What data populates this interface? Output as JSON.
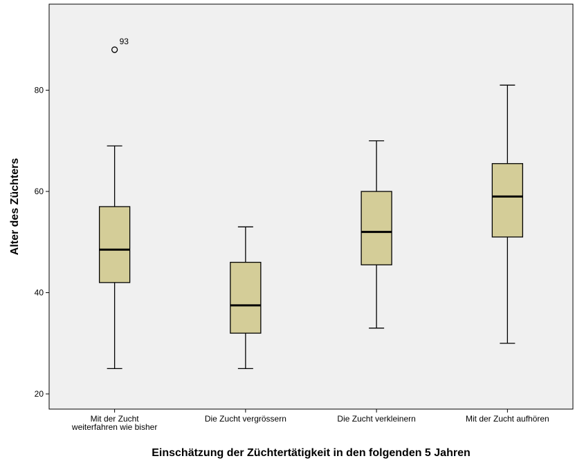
{
  "chart_data": {
    "type": "boxplot",
    "title": "",
    "xlabel": "Einschätzung der Züchtertätigkeit in den folgenden 5 Jahren",
    "ylabel": "Alter des Züchters",
    "ylim": [
      17,
      97
    ],
    "yticks": [
      20,
      40,
      60,
      80
    ],
    "grid": false,
    "colors": {
      "plot_background": "#f0f0f0",
      "box_fill": "#d4cd98",
      "stroke": "#000000"
    },
    "categories": [
      {
        "lines": [
          "Mit der Zucht",
          "weiterfahren wie bisher"
        ]
      },
      {
        "lines": [
          "Die Zucht vergrössern"
        ]
      },
      {
        "lines": [
          "Die Zucht verkleinern"
        ]
      },
      {
        "lines": [
          "Mit der Zucht aufhören"
        ]
      }
    ],
    "boxes": [
      {
        "min": 25,
        "q1": 42,
        "median": 48.5,
        "q3": 57,
        "max": 69,
        "outliers": [
          {
            "value": 88,
            "label": "93"
          }
        ]
      },
      {
        "min": 25,
        "q1": 32,
        "median": 37.5,
        "q3": 46,
        "max": 53,
        "outliers": []
      },
      {
        "min": 33,
        "q1": 45.5,
        "median": 52,
        "q3": 60,
        "max": 70,
        "outliers": []
      },
      {
        "min": 30,
        "q1": 51,
        "median": 59,
        "q3": 65.5,
        "max": 81,
        "outliers": []
      }
    ]
  }
}
